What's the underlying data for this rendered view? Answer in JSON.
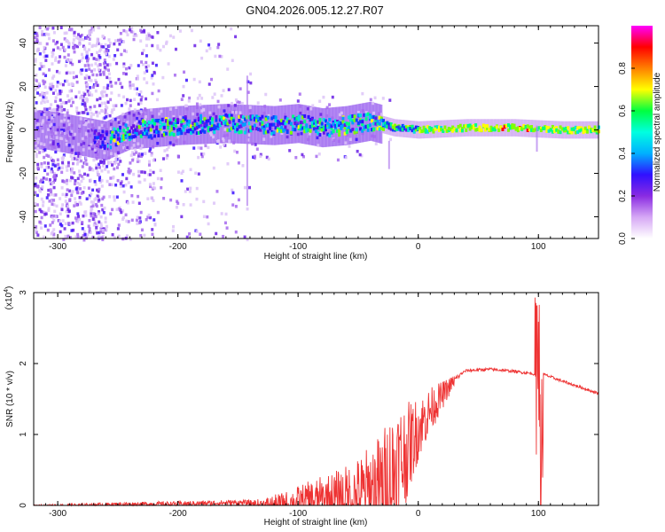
{
  "title": "GN04.2026.005.12.27.R07",
  "chart_data": [
    {
      "type": "heatmap",
      "name": "spectrogram",
      "xlabel": "Height of straight line (km)",
      "ylabel": "Frequency (Hz)",
      "xlim": [
        -320,
        150
      ],
      "ylim": [
        -50,
        48
      ],
      "x_ticks": [
        -300,
        -200,
        -100,
        0,
        100
      ],
      "y_ticks": [
        -40,
        -20,
        0,
        20,
        40
      ],
      "colorbar": {
        "label": "Normalized spectral amplitude",
        "range": [
          0.0,
          1.0
        ],
        "ticks": [
          "0.0",
          "0.2",
          "0.4",
          "0.6",
          "0.8"
        ],
        "colors": [
          "#ffffff",
          "#d6a8f5",
          "#8a2be2",
          "#3010ff",
          "#00b0ff",
          "#00ffe0",
          "#00ff40",
          "#ffff00",
          "#ff8000",
          "#ff0000",
          "#ff00ff"
        ]
      },
      "band_centers_hz": [
        [
          -310,
          0
        ],
        [
          -260,
          -5
        ],
        [
          -240,
          0
        ],
        [
          -200,
          2
        ],
        [
          -160,
          3
        ],
        [
          -120,
          2
        ],
        [
          -100,
          3
        ],
        [
          -80,
          1
        ],
        [
          -60,
          2
        ],
        [
          -40,
          4
        ],
        [
          -20,
          1
        ],
        [
          0,
          0
        ],
        [
          40,
          1
        ],
        [
          80,
          1
        ],
        [
          120,
          0
        ],
        [
          150,
          0
        ]
      ]
    },
    {
      "type": "line",
      "name": "snr",
      "xlabel": "Height of straight line (km)",
      "ylabel": "SNR (10 * v/v)",
      "multiplier": "(x10",
      "multiplier_exp": "4",
      "xlim": [
        -320,
        150
      ],
      "ylim": [
        0,
        3.0
      ],
      "x_ticks": [
        -300,
        -200,
        -100,
        0,
        100
      ],
      "y_ticks": [
        0,
        1,
        2,
        3
      ],
      "color": "#ee3333",
      "envelope": {
        "x": [
          -320,
          -250,
          -200,
          -150,
          -130,
          -110,
          -90,
          -70,
          -50,
          -30,
          -20,
          -10,
          0,
          10,
          20,
          30,
          40,
          60,
          80,
          98,
          100,
          102,
          104,
          120,
          150
        ],
        "y": [
          0.0,
          0.03,
          0.04,
          0.06,
          0.05,
          0.1,
          0.2,
          0.28,
          0.4,
          0.65,
          0.95,
          1.1,
          1.3,
          1.5,
          1.65,
          1.8,
          1.9,
          1.92,
          1.89,
          1.85,
          3.0,
          0.0,
          1.85,
          1.75,
          1.58
        ]
      },
      "noise_amplitude": {
        "x": [
          -320,
          -140,
          -100,
          -60,
          -30,
          -20,
          -10,
          0,
          20,
          35,
          150
        ],
        "y": [
          0.02,
          0.04,
          0.25,
          0.45,
          0.8,
          1.1,
          0.7,
          0.45,
          0.2,
          0.02,
          0.02
        ]
      }
    }
  ]
}
